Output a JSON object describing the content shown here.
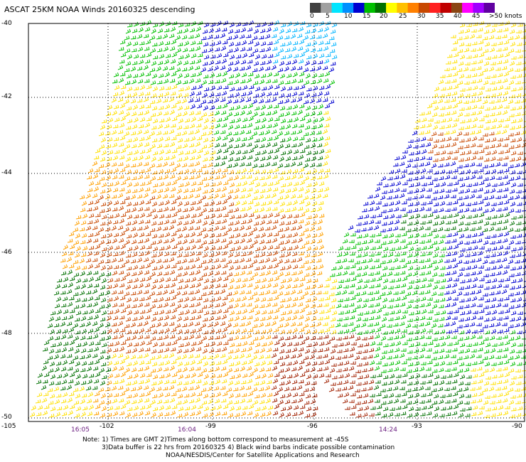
{
  "title": "ASCAT 25KM NOAA Winds 20160325 descending",
  "legend": {
    "labels": [
      "0",
      "5",
      "10",
      "15",
      "20",
      "25",
      "30",
      "35",
      "40",
      "45",
      ">50 knots"
    ],
    "colors": [
      "#404040",
      "#a0a0a0",
      "#00e5ff",
      "#0090ff",
      "#0000d0",
      "#00c000",
      "#007000",
      "#ffff00",
      "#ffc000",
      "#ff8000",
      "#c84800",
      "#ff2020",
      "#c00000",
      "#8b4513",
      "#ff00ff",
      "#a000ff",
      "#6000a0"
    ]
  },
  "latitude_labels": [
    "-40",
    "-42",
    "-44",
    "-46",
    "-48",
    "-50"
  ],
  "longitude_labels": [
    "-105",
    "-102",
    "-99",
    "-96",
    "-93",
    "-90"
  ],
  "time_labels": [
    "16:05",
    "16:04",
    "14:24"
  ],
  "notes": {
    "line1": "Note: 1) Times are GMT 2)Times along bottom correspond to measurement at -45S",
    "line2": "3)Data buffer is 22 hrs from 20160325 4) Black wind barbs indicate possible contamination",
    "line3": "NOAA/NESDIS/Center for Satellite Applications and Research"
  },
  "wind_colors": {
    "light_blue": "#00b4ff",
    "blue": "#0000d0",
    "green": "#00c000",
    "dark_green": "#007000",
    "yellow": "#ffe000",
    "orange": "#ffa000",
    "dark_orange": "#c84800",
    "dark_red": "#a02000"
  }
}
